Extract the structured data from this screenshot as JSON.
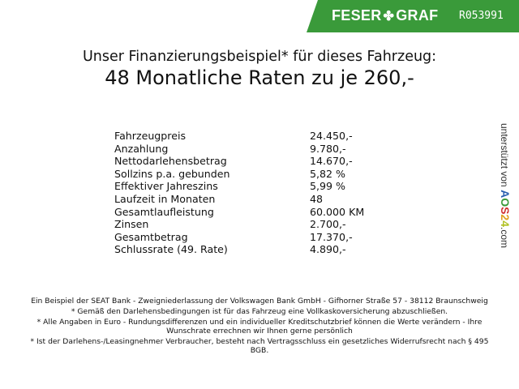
{
  "header": {
    "brand_left": "FESER",
    "brand_right": "GRAF",
    "brand_icon": "clover-icon",
    "ref": "R053991",
    "brand_color": "#3a9a3a"
  },
  "title": {
    "line1": "Unser Finanzierungsbeispiel* für dieses Fahrzeug:",
    "line2": "48 Monatliche Raten zu je 260,-"
  },
  "rows": [
    {
      "label": "Fahrzeugpreis",
      "value": "24.450,-"
    },
    {
      "label": "Anzahlung",
      "value": "9.780,-"
    },
    {
      "label": "Nettodarlehensbetrag",
      "value": "14.670,-"
    },
    {
      "label": "Sollzins p.a. gebunden",
      "value": "5,82 %"
    },
    {
      "label": "Effektiver Jahreszins",
      "value": "5,99 %"
    },
    {
      "label": "Laufzeit in Monaten",
      "value": "48"
    },
    {
      "label": "Gesamtlaufleistung",
      "value": "60.000 KM"
    },
    {
      "label": "Zinsen",
      "value": "2.700,-"
    },
    {
      "label": "Gesamtbetrag",
      "value": "17.370,-"
    },
    {
      "label": "Schlussrate (49. Rate)",
      "value": "4.890,-"
    }
  ],
  "notes": [
    "Ein Beispiel der SEAT Bank - Zweigniederlassung der Volkswagen Bank GmbH - Gifhorner Straße 57 - 38112 Braunschweig",
    "* Gemäß den Darlehensbedingungen ist für das Fahrzeug eine Vollkaskoversicherung abzuschließen.",
    "* Alle Angaben in Euro - Rundungsdifferenzen und ein individueller Kreditschutzbrief können die Werte verändern - Ihre Wunschrate errechnen wir Ihnen gerne persönlich",
    "* Ist der Darlehens-/Leasingnehmer Verbraucher, besteht nach Vertragsschluss ein gesetzliches Widerrufsrecht nach § 495 BGB."
  ],
  "side": {
    "prefix": "unterstützt von",
    "logo": "AOS24",
    "suffix": ".com"
  }
}
